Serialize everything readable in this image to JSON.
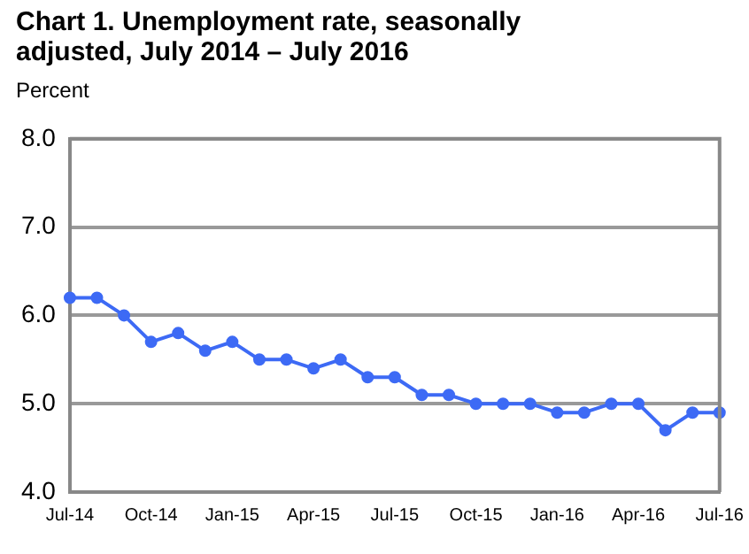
{
  "chart_data": {
    "type": "line",
    "title": "Chart 1. Unemployment rate, seasonally adjusted, July 2014 – July 2016",
    "ylabel": "Percent",
    "categories": [
      "Jul-14",
      null,
      null,
      "Oct-14",
      null,
      null,
      "Jan-15",
      null,
      null,
      "Apr-15",
      null,
      null,
      "Jul-15",
      null,
      null,
      "Oct-15",
      null,
      null,
      "Jan-16",
      null,
      null,
      "Apr-16",
      null,
      null,
      "Jul-16"
    ],
    "series": [
      {
        "color": "#3d6af5",
        "values": [
          6.2,
          6.2,
          6.0,
          5.7,
          5.8,
          5.6,
          5.7,
          5.5,
          5.5,
          5.4,
          5.5,
          5.3,
          5.3,
          5.1,
          5.1,
          5.0,
          5.0,
          5.0,
          4.9,
          4.9,
          5.0,
          5.0,
          4.7,
          4.9,
          4.9
        ]
      }
    ],
    "ylim": [
      4,
      8
    ],
    "yticks": [
      {
        "value": 4,
        "label": "4.0"
      },
      {
        "value": 5,
        "label": "5.0"
      },
      {
        "value": 6,
        "label": "6.0"
      },
      {
        "value": 7,
        "label": "7.0"
      },
      {
        "value": 8,
        "label": "8.0"
      }
    ],
    "grid": "y",
    "legend": false,
    "marker": "circle",
    "line_style": "solid"
  }
}
